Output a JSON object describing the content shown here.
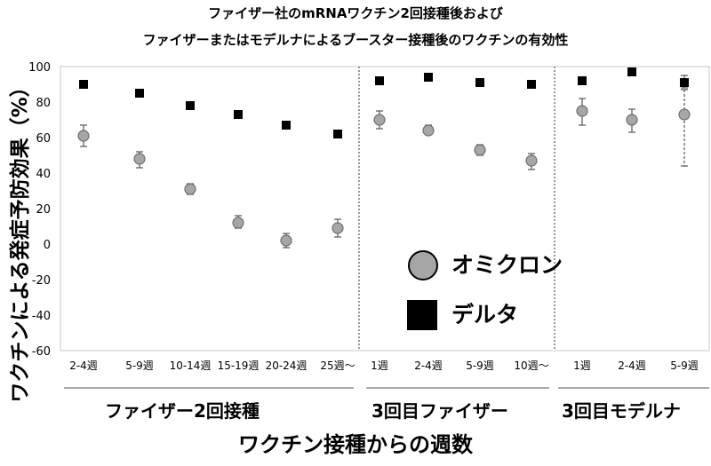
{
  "chart_data": {
    "type": "scatter",
    "title": "ファイザー社のmRNAワクチン2回接種後および",
    "subtitle": "ファイザーまたはモデルナによるブースター接種後のワクチンの有効性",
    "xlabel": "ワクチン接種からの週数",
    "ylabel": "ワクチンによる発症予防効果（%）",
    "ylim": [
      -60,
      100
    ],
    "yticks": [
      "100",
      "80",
      "60",
      "40",
      "20",
      "0",
      "-20",
      "-40",
      "-60"
    ],
    "groups": [
      {
        "label": "ファイザー2回接種",
        "categories": [
          "2-4週",
          "5-9週",
          "10-14週",
          "15-19週",
          "20-24週",
          "25週〜"
        ]
      },
      {
        "label": "3回目ファイザー",
        "categories": [
          "1週",
          "2-4週",
          "5-9週",
          "10週〜"
        ]
      },
      {
        "label": "3回目モデルナ",
        "categories": [
          "1週",
          "2-4週",
          "5-9週"
        ]
      }
    ],
    "categories": [
      "2-4週",
      "5-9週",
      "10-14週",
      "15-19週",
      "20-24週",
      "25週〜",
      "1週",
      "2-4週",
      "5-9週",
      "10週〜",
      "1週",
      "2-4週",
      "5-9週"
    ],
    "series": [
      {
        "name": "オミクロン",
        "marker": "circle",
        "color": "#a6a6a6",
        "values": [
          61,
          48,
          31,
          12,
          2,
          9,
          70,
          64,
          53,
          47,
          75,
          70,
          73
        ],
        "ci_low": [
          55,
          43,
          28,
          9,
          -2,
          4,
          65,
          62,
          50,
          42,
          67,
          63,
          44
        ],
        "ci_high": [
          67,
          52,
          34,
          16,
          6,
          14,
          75,
          67,
          56,
          51,
          82,
          76,
          87
        ]
      },
      {
        "name": "デルタ",
        "marker": "square",
        "color": "#000000",
        "values": [
          90,
          85,
          78,
          73,
          67,
          62,
          92,
          94,
          91,
          90,
          92,
          97,
          91
        ],
        "ci_low": [
          90,
          85,
          78,
          73,
          67,
          62,
          92,
          94,
          91,
          90,
          92,
          97,
          88
        ],
        "ci_high": [
          90,
          85,
          78,
          73,
          67,
          62,
          92,
          94,
          91,
          90,
          92,
          97,
          95
        ]
      }
    ],
    "legend_position": "lower-right",
    "grid": false
  }
}
